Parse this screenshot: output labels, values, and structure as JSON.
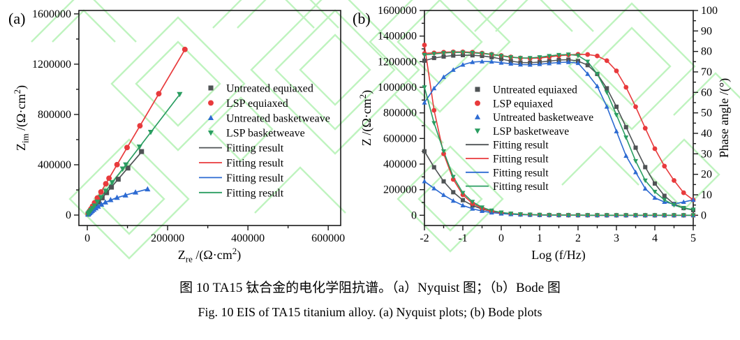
{
  "caption": {
    "zh": "图 10 TA15 钛合金的电化学阻抗谱。（a）Nyquist 图；（b）Bode 图",
    "en": "Fig. 10 EIS of TA15 titanium alloy. (a) Nyquist plots; (b) Bode plots"
  },
  "colors": {
    "black_series": "#4f5355",
    "red_series": "#e83a3c",
    "blue_series": "#2d6bd2",
    "green_series": "#2a9d61",
    "axis": "#1a1a1a",
    "watermark": "#b5f2b5",
    "background": "#ffffff"
  },
  "legend": {
    "items": [
      {
        "label": "Untreated equiaxed",
        "marker": "square",
        "color_key": "black_series"
      },
      {
        "label": "LSP equiaxed",
        "marker": "circle",
        "color_key": "red_series"
      },
      {
        "label": "Untreated basketweave",
        "marker": "triangle-up",
        "color_key": "blue_series"
      },
      {
        "label": "LSP basketweave",
        "marker": "triangle-down",
        "color_key": "green_series"
      },
      {
        "label": "Fitting result",
        "marker": "line",
        "color_key": "black_series"
      },
      {
        "label": "Fitting result",
        "marker": "line",
        "color_key": "red_series"
      },
      {
        "label": "Fitting result",
        "marker": "line",
        "color_key": "blue_series"
      },
      {
        "label": "Fitting result",
        "marker": "line",
        "color_key": "green_series"
      }
    ]
  },
  "chart_data": [
    {
      "id": "nyquist",
      "type": "scatter",
      "panel_label": "(a)",
      "axes": {
        "x": {
          "min": -21000,
          "max": 631000,
          "ticks": [
            0,
            200000,
            400000,
            600000
          ],
          "minor_step": 100000,
          "label_parts": [
            [
              "Z",
              "n"
            ],
            [
              "re",
              "sub"
            ],
            [
              " /(Ω·cm",
              "n"
            ],
            [
              "2",
              "sup"
            ],
            [
              ")",
              "n"
            ]
          ]
        },
        "y": {
          "min": -83000,
          "max": 1627000,
          "ticks": [
            0,
            400000,
            800000,
            1200000,
            1600000
          ],
          "minor_step": 200000,
          "label_parts": [
            [
              "Z",
              "n"
            ],
            [
              "im",
              "sub"
            ],
            [
              " /(Ω·cm",
              "n"
            ],
            [
              "2",
              "sup"
            ],
            [
              ")",
              "n"
            ]
          ]
        }
      },
      "series": [
        {
          "name": "Untreated equiaxed",
          "marker": "square",
          "color_key": "black_series",
          "points": [
            [
              2000,
              7000
            ],
            [
              4000,
              15000
            ],
            [
              6000,
              22000
            ],
            [
              9000,
              33000
            ],
            [
              12000,
              44000
            ],
            [
              16000,
              59000
            ],
            [
              21000,
              78000
            ],
            [
              28000,
              104000
            ],
            [
              37000,
              137000
            ],
            [
              48000,
              178000
            ],
            [
              60000,
              222000
            ],
            [
              77000,
              285000
            ],
            [
              101000,
              374000
            ],
            [
              135000,
              505000
            ]
          ],
          "fit": [
            [
              0,
              0
            ],
            [
              139000,
              516000
            ]
          ]
        },
        {
          "name": "LSP equiaxed",
          "marker": "circle",
          "color_key": "red_series",
          "points": [
            [
              2000,
              11000
            ],
            [
              4000,
              22000
            ],
            [
              6000,
              33000
            ],
            [
              9000,
              49000
            ],
            [
              13000,
              70000
            ],
            [
              18000,
              98000
            ],
            [
              25000,
              136000
            ],
            [
              34000,
              184000
            ],
            [
              46000,
              249000
            ],
            [
              54000,
              293000
            ],
            [
              74000,
              401000
            ],
            [
              99000,
              537000
            ],
            [
              131000,
              710000
            ],
            [
              178000,
              965000
            ],
            [
              243000,
              1317000
            ]
          ],
          "fit": [
            [
              0,
              0
            ],
            [
              246000,
              1332000
            ]
          ]
        },
        {
          "name": "Untreated basketweave",
          "marker": "triangle-up",
          "color_key": "blue_series",
          "points": [
            [
              2000,
              6000
            ],
            [
              4000,
              12000
            ],
            [
              6000,
              18000
            ],
            [
              9000,
              26000
            ],
            [
              12000,
              34000
            ],
            [
              16000,
              44000
            ],
            [
              21000,
              56000
            ],
            [
              27000,
              69000
            ],
            [
              35000,
              85000
            ],
            [
              45000,
              102000
            ],
            [
              58000,
              121000
            ],
            [
              74000,
              139000
            ],
            [
              95000,
              158000
            ],
            [
              120000,
              181000
            ],
            [
              150000,
              206000
            ]
          ],
          "fit": [
            [
              0,
              0
            ],
            [
              10000,
              28000
            ],
            [
              25000,
              64000
            ],
            [
              45000,
              102000
            ],
            [
              70000,
              134000
            ],
            [
              100000,
              163000
            ],
            [
              125000,
              185000
            ],
            [
              152000,
              208000
            ]
          ]
        },
        {
          "name": "LSP basketweave",
          "marker": "triangle-down",
          "color_key": "green_series",
          "points": [
            [
              2000,
              8000
            ],
            [
              4000,
              17000
            ],
            [
              6000,
              25000
            ],
            [
              9000,
              38000
            ],
            [
              13000,
              54000
            ],
            [
              18000,
              75000
            ],
            [
              25000,
              105000
            ],
            [
              34000,
              142000
            ],
            [
              46000,
              192000
            ],
            [
              62000,
              259000
            ],
            [
              88000,
              368000
            ],
            [
              96000,
              401000
            ],
            [
              130000,
              543000
            ],
            [
              158000,
              660000
            ],
            [
              230000,
              961000
            ]
          ],
          "fit": [
            [
              0,
              0
            ],
            [
              234000,
              975000
            ]
          ]
        }
      ]
    },
    {
      "id": "bode",
      "type": "line",
      "panel_label": "(b)",
      "axes": {
        "x": {
          "min": -2,
          "max": 5,
          "ticks": [
            -2,
            -1,
            0,
            1,
            2,
            3,
            4,
            5
          ],
          "minor_step": 0.5,
          "label": "Log (f/Hz)"
        },
        "y_left": {
          "min": -80000,
          "max": 1600000,
          "ticks": [
            0,
            200000,
            400000,
            600000,
            800000,
            1000000,
            1200000,
            1400000,
            1600000
          ],
          "minor_step": 100000,
          "label_parts": [
            [
              "Z",
              "n"
            ],
            [
              " /(Ω·cm",
              "n"
            ],
            [
              "2",
              "sup"
            ],
            [
              ")",
              "n"
            ]
          ]
        },
        "y_right": {
          "min": -5,
          "max": 100,
          "ticks": [
            0,
            10,
            20,
            30,
            40,
            50,
            60,
            70,
            80,
            90,
            100
          ],
          "minor_step": 5,
          "label": "Phase angle /(°)"
        }
      },
      "x": [
        -2,
        -1.75,
        -1.5,
        -1.25,
        -1,
        -0.75,
        -0.5,
        -0.25,
        0,
        0.25,
        0.5,
        0.75,
        1,
        1.25,
        1.5,
        1.75,
        2,
        2.25,
        2.5,
        2.75,
        3,
        3.25,
        3.5,
        3.75,
        4,
        4.25,
        4.5,
        4.75,
        5
      ],
      "series": [
        {
          "name": "Untreated equiaxed",
          "marker": "square",
          "color_key": "black_series",
          "z": [
            500000,
            375000,
            265000,
            180000,
            118000,
            76000,
            48000,
            29000,
            18000,
            11000,
            6800,
            4200,
            2700,
            1700,
            1150,
            800,
            560,
            410,
            310,
            240,
            190,
            155,
            130,
            110,
            92,
            78,
            68,
            58,
            50
          ],
          "phase": [
            75.5,
            76.8,
            77.5,
            78,
            78.2,
            78.1,
            77.8,
            77.2,
            76.3,
            75.3,
            74.6,
            74.5,
            74.8,
            75.3,
            75.8,
            76,
            75.3,
            73.3,
            69,
            62,
            53,
            43,
            33,
            23.5,
            15.5,
            9.5,
            5.5,
            3.5,
            2.5
          ]
        },
        {
          "name": "LSP equiaxed",
          "marker": "circle",
          "color_key": "red_series",
          "z": [
            1330000,
            820000,
            480000,
            280000,
            160000,
            92000,
            54000,
            31000,
            18000,
            11000,
            6500,
            4000,
            2500,
            1600,
            1100,
            750,
            520,
            380,
            290,
            230,
            185,
            150,
            125,
            105,
            90,
            75,
            65,
            55,
            50
          ],
          "phase": [
            79,
            79.3,
            79.6,
            79.8,
            79.8,
            79.6,
            79.2,
            78.6,
            78,
            77.3,
            76.8,
            76.6,
            76.8,
            77.3,
            77.9,
            78.3,
            78.6,
            78.5,
            77.8,
            75.5,
            70.5,
            62.5,
            53,
            42.5,
            32.5,
            24,
            17,
            11,
            7.5
          ]
        },
        {
          "name": "Untreated basketweave",
          "marker": "triangle-up",
          "color_key": "blue_series",
          "z": [
            265000,
            210000,
            158000,
            113000,
            77000,
            51000,
            33000,
            21000,
            13000,
            8200,
            5200,
            3300,
            2100,
            1400,
            950,
            670,
            480,
            360,
            280,
            220,
            175,
            145,
            120,
            100,
            85,
            72,
            62,
            54,
            48
          ],
          "phase": [
            55,
            62,
            67.5,
            71,
            73.5,
            74.8,
            75.1,
            75,
            74.5,
            74,
            73.6,
            73.5,
            73.8,
            74.2,
            74.6,
            74.8,
            74.3,
            69,
            63,
            53,
            41,
            29,
            21,
            13,
            8.5,
            6.5,
            5.5,
            6.5,
            7.5
          ]
        },
        {
          "name": "LSP basketweave",
          "marker": "triangle-down",
          "color_key": "green_series",
          "z": [
            1000000,
            720000,
            500000,
            300000,
            175000,
            105000,
            62000,
            37000,
            22000,
            13000,
            8000,
            5000,
            3200,
            2000,
            1300,
            900,
            600,
            450,
            350,
            280,
            220,
            180,
            150,
            120,
            100,
            85,
            70,
            60,
            50
          ],
          "phase": [
            78.3,
            78.8,
            79.2,
            79.5,
            79.5,
            79.3,
            79,
            78.5,
            77.8,
            77.2,
            76.8,
            76.8,
            77.2,
            77.8,
            78.3,
            78.5,
            78,
            75,
            69,
            60,
            49,
            38,
            26.5,
            17,
            11.5,
            7.5,
            5,
            3.5,
            2.8
          ]
        }
      ]
    }
  ]
}
